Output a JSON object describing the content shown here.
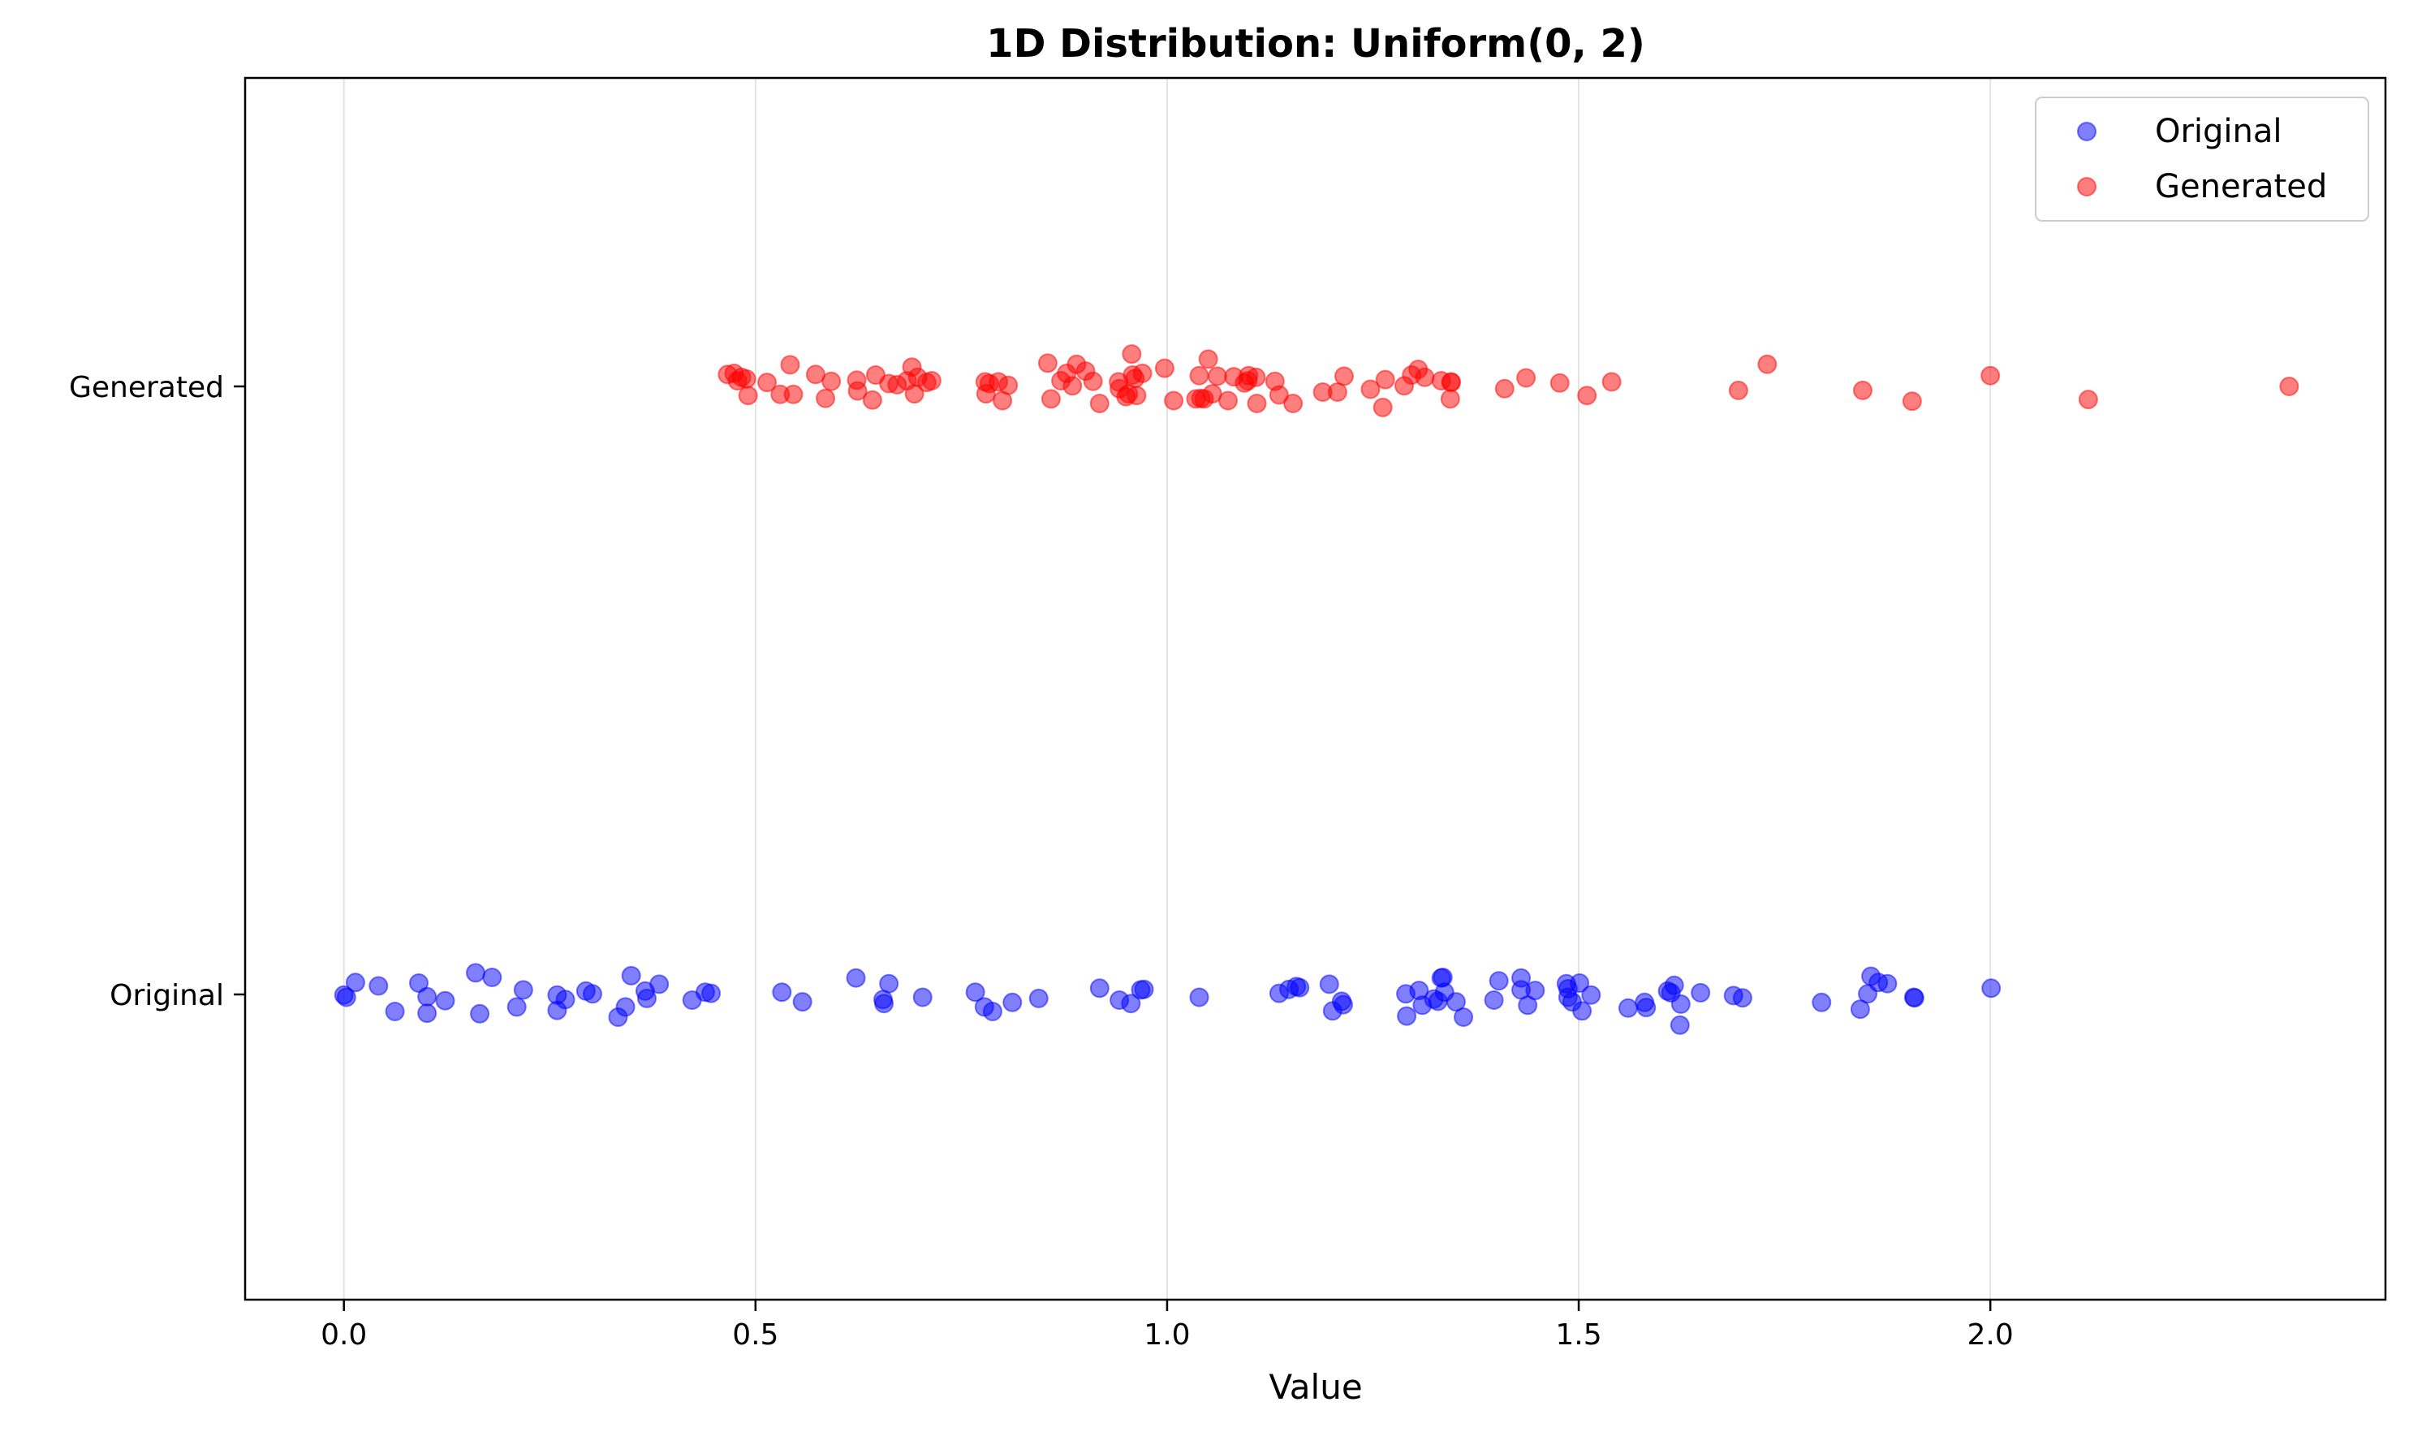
{
  "chart_data": {
    "type": "scatter",
    "title": "1D Distribution: Uniform(0, 2)",
    "xlabel": "Value",
    "ylabel": "",
    "xlim": [
      -0.12,
      2.48
    ],
    "x_ticks": [
      0.0,
      0.5,
      1.0,
      1.5,
      2.0
    ],
    "x_tick_labels": [
      "0.0",
      "0.5",
      "1.0",
      "1.5",
      "2.0"
    ],
    "categories": [
      "Original",
      "Generated"
    ],
    "grid": "x-axis vertical lines",
    "legend": "top-right",
    "series": [
      {
        "name": "Original",
        "color": "#0000ff",
        "category": "Original",
        "points": [
          [
            0.0,
            -0.001
          ],
          [
            0.003,
            -0.005
          ],
          [
            0.014,
            0.021
          ],
          [
            0.042,
            0.015
          ],
          [
            0.062,
            -0.03
          ],
          [
            0.091,
            0.02
          ],
          [
            0.101,
            -0.004
          ],
          [
            0.101,
            -0.033
          ],
          [
            0.123,
            -0.011
          ],
          [
            0.16,
            0.038
          ],
          [
            0.165,
            -0.034
          ],
          [
            0.18,
            0.03
          ],
          [
            0.21,
            -0.022
          ],
          [
            0.218,
            0.008
          ],
          [
            0.259,
            -0.001
          ],
          [
            0.259,
            -0.028
          ],
          [
            0.269,
            -0.009
          ],
          [
            0.294,
            0.006
          ],
          [
            0.302,
            0.001
          ],
          [
            0.333,
            -0.04
          ],
          [
            0.342,
            -0.022
          ],
          [
            0.349,
            0.033
          ],
          [
            0.366,
            0.006
          ],
          [
            0.368,
            -0.007
          ],
          [
            0.383,
            0.018
          ],
          [
            0.423,
            -0.01
          ],
          [
            0.439,
            0.004
          ],
          [
            0.446,
            0.002
          ],
          [
            0.532,
            0.004
          ],
          [
            0.557,
            -0.013
          ],
          [
            0.622,
            0.029
          ],
          [
            0.655,
            -0.009
          ],
          [
            0.656,
            -0.016
          ],
          [
            0.662,
            0.019
          ],
          [
            0.703,
            -0.005
          ],
          [
            0.767,
            0.004
          ],
          [
            0.778,
            -0.022
          ],
          [
            0.788,
            -0.03
          ],
          [
            0.812,
            -0.014
          ],
          [
            0.844,
            -0.007
          ],
          [
            0.918,
            0.011
          ],
          [
            0.942,
            -0.01
          ],
          [
            0.956,
            -0.016
          ],
          [
            0.968,
            0.008
          ],
          [
            0.972,
            0.009
          ],
          [
            1.039,
            -0.005
          ],
          [
            1.136,
            0.002
          ],
          [
            1.148,
            0.009
          ],
          [
            1.157,
            0.014
          ],
          [
            1.161,
            0.012
          ],
          [
            1.197,
            0.018
          ],
          [
            1.201,
            -0.029
          ],
          [
            1.212,
            -0.012
          ],
          [
            1.214,
            -0.018
          ],
          [
            1.29,
            0.001
          ],
          [
            1.291,
            -0.038
          ],
          [
            1.306,
            0.007
          ],
          [
            1.31,
            -0.019
          ],
          [
            1.324,
            -0.008
          ],
          [
            1.329,
            -0.012
          ],
          [
            1.333,
            0.029
          ],
          [
            1.335,
            0.03
          ],
          [
            1.337,
            0.004
          ],
          [
            1.351,
            -0.013
          ],
          [
            1.36,
            -0.04
          ],
          [
            1.397,
            -0.01
          ],
          [
            1.403,
            0.024
          ],
          [
            1.43,
            0.029
          ],
          [
            1.43,
            0.008
          ],
          [
            1.438,
            -0.019
          ],
          [
            1.447,
            0.007
          ],
          [
            1.485,
            0.019
          ],
          [
            1.487,
            0.01
          ],
          [
            1.487,
            -0.005
          ],
          [
            1.492,
            -0.013
          ],
          [
            1.501,
            0.02
          ],
          [
            1.504,
            -0.029
          ],
          [
            1.515,
            -0.001
          ],
          [
            1.56,
            -0.024
          ],
          [
            1.58,
            -0.014
          ],
          [
            1.582,
            -0.023
          ],
          [
            1.608,
            0.006
          ],
          [
            1.612,
            0.003
          ],
          [
            1.616,
            0.016
          ],
          [
            1.623,
            -0.054
          ],
          [
            1.624,
            -0.017
          ],
          [
            1.648,
            0.003
          ],
          [
            1.688,
            -0.002
          ],
          [
            1.699,
            -0.006
          ],
          [
            1.795,
            -0.014
          ],
          [
            1.842,
            -0.026
          ],
          [
            1.851,
            0.001
          ],
          [
            1.855,
            0.032
          ],
          [
            1.864,
            0.021
          ],
          [
            1.875,
            0.019
          ],
          [
            1.907,
            -0.005
          ],
          [
            1.908,
            -0.006
          ],
          [
            2.001,
            0.011
          ]
        ]
      },
      {
        "name": "Generated",
        "color": "#ff0000",
        "category": "Generated",
        "points": [
          [
            0.466,
            0.021
          ],
          [
            0.474,
            0.023
          ],
          [
            0.478,
            0.01
          ],
          [
            0.483,
            0.016
          ],
          [
            0.489,
            0.013
          ],
          [
            0.491,
            -0.016
          ],
          [
            0.514,
            0.007
          ],
          [
            0.53,
            -0.014
          ],
          [
            0.542,
            0.038
          ],
          [
            0.546,
            -0.014
          ],
          [
            0.573,
            0.021
          ],
          [
            0.585,
            -0.021
          ],
          [
            0.592,
            0.009
          ],
          [
            0.623,
            0.011
          ],
          [
            0.624,
            -0.008
          ],
          [
            0.642,
            -0.024
          ],
          [
            0.646,
            0.02
          ],
          [
            0.662,
            0.005
          ],
          [
            0.672,
            0.003
          ],
          [
            0.684,
            0.01
          ],
          [
            0.69,
            0.034
          ],
          [
            0.693,
            -0.013
          ],
          [
            0.697,
            0.016
          ],
          [
            0.708,
            0.007
          ],
          [
            0.714,
            0.01
          ],
          [
            0.779,
            0.008
          ],
          [
            0.78,
            -0.013
          ],
          [
            0.784,
            0.005
          ],
          [
            0.795,
            0.008
          ],
          [
            0.8,
            -0.025
          ],
          [
            0.807,
            0.002
          ],
          [
            0.855,
            0.041
          ],
          [
            0.859,
            -0.022
          ],
          [
            0.871,
            0.01
          ],
          [
            0.878,
            0.023
          ],
          [
            0.885,
            0.001
          ],
          [
            0.89,
            0.039
          ],
          [
            0.901,
            0.027
          ],
          [
            0.91,
            0.009
          ],
          [
            0.918,
            -0.03
          ],
          [
            0.941,
            0.008
          ],
          [
            0.942,
            -0.004
          ],
          [
            0.95,
            -0.018
          ],
          [
            0.953,
            -0.013
          ],
          [
            0.957,
            0.057
          ],
          [
            0.958,
            0.02
          ],
          [
            0.961,
            0.014
          ],
          [
            0.963,
            -0.016
          ],
          [
            0.97,
            0.023
          ],
          [
            0.997,
            0.032
          ],
          [
            1.008,
            -0.025
          ],
          [
            1.035,
            -0.022
          ],
          [
            1.039,
            0.019
          ],
          [
            1.041,
            -0.021
          ],
          [
            1.045,
            -0.022
          ],
          [
            1.05,
            0.048
          ],
          [
            1.055,
            -0.013
          ],
          [
            1.061,
            0.018
          ],
          [
            1.074,
            -0.025
          ],
          [
            1.081,
            0.017
          ],
          [
            1.094,
            0.006
          ],
          [
            1.098,
            0.01
          ],
          [
            1.099,
            0.019
          ],
          [
            1.108,
            0.016
          ],
          [
            1.109,
            -0.03
          ],
          [
            1.131,
            0.009
          ],
          [
            1.136,
            -0.015
          ],
          [
            1.153,
            -0.03
          ],
          [
            1.189,
            -0.01
          ],
          [
            1.207,
            -0.01
          ],
          [
            1.215,
            0.018
          ],
          [
            1.247,
            -0.005
          ],
          [
            1.262,
            -0.037
          ],
          [
            1.265,
            0.012
          ],
          [
            1.288,
            0.001
          ],
          [
            1.297,
            0.02
          ],
          [
            1.305,
            0.03
          ],
          [
            1.313,
            0.016
          ],
          [
            1.333,
            0.01
          ],
          [
            1.344,
            -0.022
          ],
          [
            1.345,
            0.008
          ],
          [
            1.345,
            0.007
          ],
          [
            1.41,
            -0.004
          ],
          [
            1.436,
            0.015
          ],
          [
            1.477,
            0.006
          ],
          [
            1.51,
            -0.016
          ],
          [
            1.54,
            0.008
          ],
          [
            1.694,
            -0.007
          ],
          [
            1.729,
            0.039
          ],
          [
            1.845,
            -0.007
          ],
          [
            1.905,
            -0.026
          ],
          [
            2.0,
            0.019
          ],
          [
            2.119,
            -0.023
          ],
          [
            2.363,
            0.0
          ]
        ]
      }
    ]
  }
}
